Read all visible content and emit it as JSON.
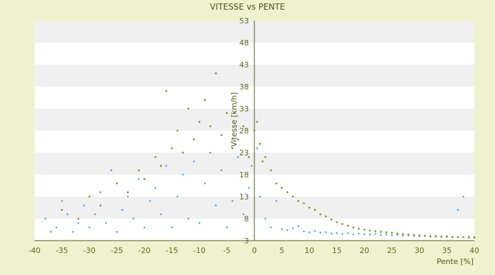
{
  "chart_data": {
    "type": "scatter",
    "title": "VITESSE vs PENTE",
    "xlabel": "Pente [%]",
    "ylabel": "Vitesse [km/h]",
    "xlim": [
      -40,
      40
    ],
    "ylim": [
      3,
      53
    ],
    "xticks": [
      -40,
      -35,
      -30,
      -25,
      -20,
      -15,
      -10,
      -5,
      0,
      5,
      10,
      15,
      20,
      25,
      30,
      35,
      40
    ],
    "yticks": [
      3,
      8,
      13,
      18,
      23,
      28,
      33,
      38,
      43,
      48,
      53
    ],
    "grid": "horizontal alternating bands",
    "colors": {
      "background": "#eef2cf",
      "plot": "#ffffff",
      "band": "#f0f0f0",
      "text": "#4b5a14",
      "axis": "#4f5a14",
      "series_blue": "#3d8fe0",
      "series_olive": "#7a8a14"
    },
    "series": [
      {
        "name": "",
        "color": "#3d8fe0",
        "points": [
          [
            -38,
            8
          ],
          [
            -37,
            5
          ],
          [
            -36,
            6
          ],
          [
            -35,
            12
          ],
          [
            -34,
            9
          ],
          [
            -33,
            5
          ],
          [
            -32,
            7
          ],
          [
            -31,
            11
          ],
          [
            -30,
            6
          ],
          [
            -29,
            9
          ],
          [
            -28,
            14
          ],
          [
            -27,
            7
          ],
          [
            -26,
            19
          ],
          [
            -25,
            5
          ],
          [
            -24,
            10
          ],
          [
            -23,
            13
          ],
          [
            -22,
            8
          ],
          [
            -21,
            17
          ],
          [
            -20,
            6
          ],
          [
            -19,
            12
          ],
          [
            -18,
            15
          ],
          [
            -17,
            9
          ],
          [
            -16,
            20
          ],
          [
            -15,
            6
          ],
          [
            -14,
            13
          ],
          [
            -13,
            18
          ],
          [
            -12,
            8
          ],
          [
            -11,
            21
          ],
          [
            -10,
            7
          ],
          [
            -9,
            16
          ],
          [
            -8,
            23
          ],
          [
            -7,
            11
          ],
          [
            -6,
            19
          ],
          [
            -5,
            6
          ],
          [
            -4,
            12
          ],
          [
            -3,
            22
          ],
          [
            -2,
            9
          ],
          [
            -1,
            15
          ],
          [
            -0.5,
            20
          ],
          [
            0.5,
            24
          ],
          [
            1,
            13
          ],
          [
            2,
            8
          ],
          [
            3,
            6
          ],
          [
            4,
            12
          ],
          [
            5,
            5.6
          ],
          [
            6,
            5.4
          ],
          [
            7,
            5.8
          ],
          [
            8,
            6.3
          ],
          [
            9,
            5.1
          ],
          [
            10,
            4.9
          ],
          [
            11,
            5.2
          ],
          [
            12,
            4.8
          ],
          [
            13,
            4.9
          ],
          [
            14,
            4.6
          ],
          [
            15,
            4.7
          ],
          [
            16,
            4.5
          ],
          [
            17,
            4.7
          ],
          [
            18,
            4.4
          ],
          [
            19,
            4.6
          ],
          [
            20,
            4.5
          ],
          [
            21,
            4.4
          ],
          [
            22,
            4.5
          ],
          [
            23,
            4.3
          ],
          [
            24,
            4.4
          ],
          [
            25,
            4.2
          ],
          [
            26,
            4.3
          ],
          [
            27,
            4.1
          ],
          [
            28,
            4.2
          ],
          [
            29,
            4.1
          ],
          [
            30,
            4.0
          ],
          [
            31,
            4.1
          ],
          [
            32,
            3.9
          ],
          [
            33,
            4.0
          ],
          [
            34,
            3.9
          ],
          [
            35,
            4.0
          ],
          [
            36,
            3.8
          ],
          [
            37,
            10
          ],
          [
            38,
            13
          ],
          [
            39,
            3.9
          ],
          [
            40,
            3.8
          ]
        ]
      },
      {
        "name": "",
        "color": "#7a8a14",
        "points": [
          [
            -35,
            10
          ],
          [
            -32,
            8
          ],
          [
            -30,
            13
          ],
          [
            -28,
            11
          ],
          [
            -25,
            16
          ],
          [
            -23,
            14
          ],
          [
            -21,
            19
          ],
          [
            -20,
            17
          ],
          [
            -18,
            22
          ],
          [
            -17,
            20
          ],
          [
            -16,
            37
          ],
          [
            -15,
            24
          ],
          [
            -14,
            28
          ],
          [
            -13,
            23
          ],
          [
            -12,
            33
          ],
          [
            -11,
            26
          ],
          [
            -10,
            30
          ],
          [
            -9,
            35
          ],
          [
            -8,
            29
          ],
          [
            -7,
            41
          ],
          [
            -6,
            27
          ],
          [
            -5,
            32
          ],
          [
            -4,
            24
          ],
          [
            -3,
            26
          ],
          [
            -2,
            29
          ],
          [
            -1,
            22
          ],
          [
            0,
            28
          ],
          [
            0.5,
            30
          ],
          [
            1,
            25
          ],
          [
            1.5,
            21
          ],
          [
            2,
            22
          ],
          [
            3,
            19
          ],
          [
            4,
            16
          ],
          [
            5,
            15
          ],
          [
            6,
            14
          ],
          [
            7,
            13
          ],
          [
            8,
            12
          ],
          [
            9,
            11.5
          ],
          [
            10,
            10.5
          ],
          [
            11,
            10
          ],
          [
            12,
            9
          ],
          [
            13,
            8.5
          ],
          [
            14,
            7.8
          ],
          [
            15,
            7.2
          ],
          [
            16,
            6.8
          ],
          [
            17,
            6.4
          ],
          [
            18,
            6.0
          ],
          [
            19,
            5.7
          ],
          [
            20,
            5.5
          ],
          [
            21,
            5.3
          ],
          [
            22,
            5.1
          ],
          [
            23,
            5.0
          ],
          [
            24,
            4.9
          ],
          [
            25,
            4.8
          ],
          [
            26,
            4.6
          ],
          [
            27,
            4.5
          ],
          [
            28,
            4.4
          ],
          [
            29,
            4.3
          ],
          [
            30,
            4.2
          ],
          [
            31,
            4.1
          ],
          [
            32,
            4.0
          ],
          [
            33,
            4.0
          ],
          [
            34,
            3.9
          ],
          [
            35,
            3.9
          ],
          [
            36,
            3.8
          ],
          [
            37,
            3.8
          ],
          [
            38,
            3.8
          ],
          [
            39,
            3.7
          ],
          [
            40,
            3.7
          ]
        ]
      }
    ]
  }
}
